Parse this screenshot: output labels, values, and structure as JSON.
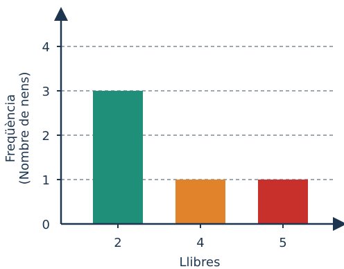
{
  "chart_data": {
    "type": "bar",
    "xlabel": "Llibres",
    "ylabel_lines": [
      "Freqüència",
      "(Nombre de nens)"
    ],
    "categories": [
      "2",
      "4",
      "5"
    ],
    "values": [
      3,
      1,
      1
    ],
    "bar_colors": [
      "#1f8f7a",
      "#e0832a",
      "#c8302c"
    ],
    "ylim": [
      0,
      4
    ],
    "yticks": [
      "0",
      "1",
      "2",
      "3",
      "4"
    ],
    "grid": "dashed horizontal",
    "axis_color": "#1e3550"
  }
}
